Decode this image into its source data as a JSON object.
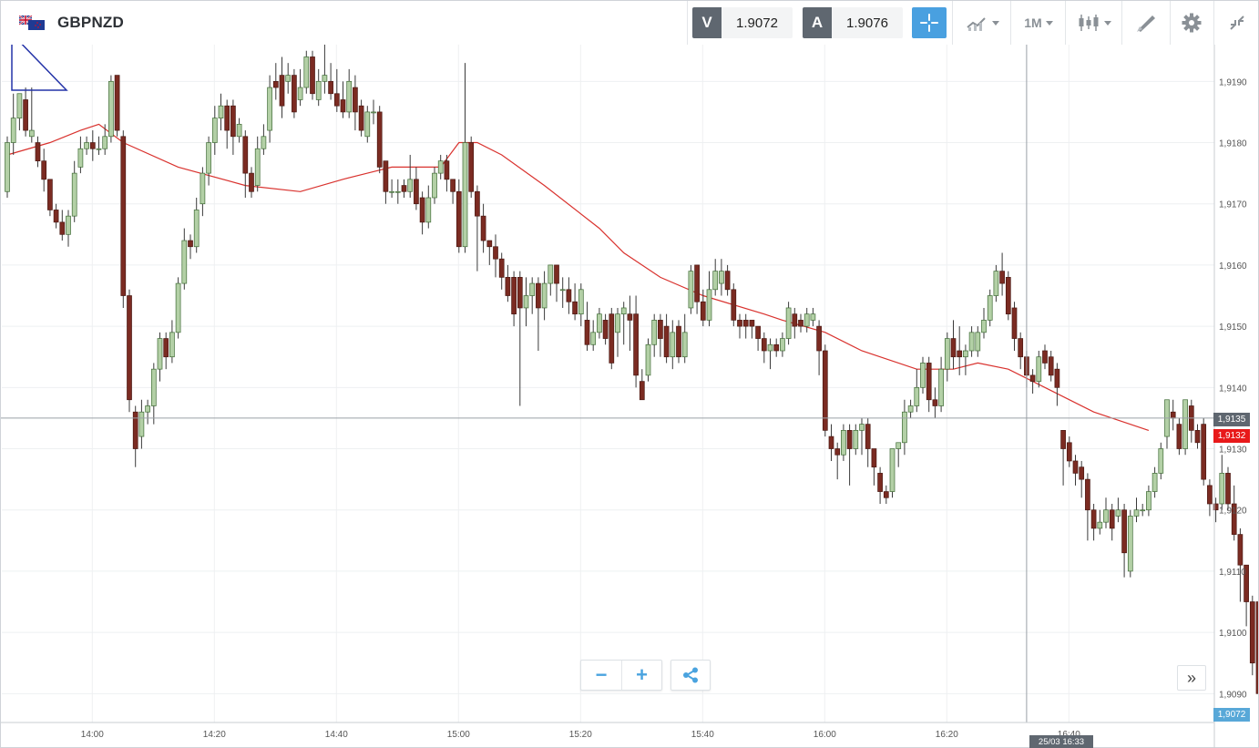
{
  "instrument": {
    "symbol": "GBPNZD"
  },
  "quotes": {
    "bid_tag": "V",
    "bid": "1.9072",
    "ask_tag": "A",
    "ask": "1.9076"
  },
  "toolbar": {
    "timeframe": "1M",
    "icons": [
      "crosshair-icon",
      "line-chart-icon",
      "candlestick-icon",
      "drawing-tool-icon",
      "gear-icon",
      "collapse-icon"
    ]
  },
  "colors": {
    "bull": "#b3d0a6",
    "bear": "#7b2b22",
    "ma": "#d9322e",
    "accent": "#49a0e0",
    "current_price_tag": "#e8191a",
    "bid_tag_bg": "#58a8d8"
  },
  "axis_labels": {
    "y": [
      "1,9190",
      "1,9180",
      "1,9170",
      "1,9160",
      "1,9150",
      "1,9140",
      "1,9130",
      "1,9120",
      "1,9110",
      "1,9100",
      "1,9090"
    ],
    "x": [
      "14:00",
      "14:20",
      "14:40",
      "15:00",
      "15:20",
      "15:40",
      "16:00",
      "16:20",
      "16:40"
    ]
  },
  "price_tags": {
    "crosshair_price": "1,9135",
    "current_price": "1,9132",
    "bid_price": "1,9072",
    "crosshair_time": "25/03 16:33"
  },
  "controls": {
    "zoom_out": "−",
    "zoom_in": "+",
    "scroll_forward": "»"
  },
  "chart_data": {
    "type": "candlestick",
    "timeframe": "1M",
    "ylim": [
      1.9088,
      1.9196
    ],
    "y_ticks": [
      1.919,
      1.918,
      1.917,
      1.916,
      1.915,
      1.914,
      1.913,
      1.912,
      1.911,
      1.91,
      1.909
    ],
    "x_ticks": [
      "14:00",
      "14:20",
      "14:40",
      "15:00",
      "15:20",
      "15:40",
      "16:00",
      "16:20",
      "16:40"
    ],
    "x_start": "13:46",
    "crosshair": {
      "time": "25/03 16:33",
      "price": 1.9135
    },
    "current_price": 1.9132,
    "ohlc": [
      [
        1.9172,
        1.918,
        1.9181,
        1.9171
      ],
      [
        1.918,
        1.9184,
        1.9188,
        1.9178
      ],
      [
        1.9184,
        1.9188,
        1.9188,
        1.9182
      ],
      [
        1.9187,
        1.9182,
        1.9189,
        1.9181
      ],
      [
        1.9181,
        1.9182,
        1.9189,
        1.918
      ],
      [
        1.918,
        1.9177,
        1.9181,
        1.9176
      ],
      [
        1.9177,
        1.9174,
        1.9179,
        1.9172
      ],
      [
        1.9174,
        1.9169,
        1.9174,
        1.9168
      ],
      [
        1.9169,
        1.9167,
        1.917,
        1.9166
      ],
      [
        1.9167,
        1.9165,
        1.9169,
        1.9164
      ],
      [
        1.9165,
        1.9168,
        1.9169,
        1.9163
      ],
      [
        1.9168,
        1.9175,
        1.9177,
        1.9167
      ],
      [
        1.9176,
        1.9179,
        1.9181,
        1.9175
      ],
      [
        1.9179,
        1.918,
        1.9181,
        1.9178
      ],
      [
        1.918,
        1.9179,
        1.9182,
        1.9177
      ],
      [
        1.9179,
        1.9179,
        1.9181,
        1.9178
      ],
      [
        1.9179,
        1.9181,
        1.9183,
        1.9178
      ],
      [
        1.9181,
        1.919,
        1.9191,
        1.918
      ],
      [
        1.9191,
        1.9182,
        1.9191,
        1.9181
      ],
      [
        1.9181,
        1.9155,
        1.9182,
        1.9153
      ],
      [
        1.9155,
        1.9138,
        1.9156,
        1.9136
      ],
      [
        1.9136,
        1.913,
        1.9137,
        1.9127
      ],
      [
        1.9132,
        1.9136,
        1.9138,
        1.913
      ],
      [
        1.9136,
        1.9137,
        1.9138,
        1.9134
      ],
      [
        1.9137,
        1.9143,
        1.9144,
        1.9134
      ],
      [
        1.9143,
        1.9148,
        1.9149,
        1.9141
      ],
      [
        1.9148,
        1.9145,
        1.9149,
        1.9143
      ],
      [
        1.9145,
        1.9149,
        1.9151,
        1.9144
      ],
      [
        1.9149,
        1.9157,
        1.9158,
        1.9148
      ],
      [
        1.9157,
        1.9164,
        1.9166,
        1.9156
      ],
      [
        1.9164,
        1.9163,
        1.9165,
        1.9161
      ],
      [
        1.9163,
        1.9169,
        1.9171,
        1.9162
      ],
      [
        1.917,
        1.9175,
        1.9176,
        1.9168
      ],
      [
        1.9175,
        1.918,
        1.9181,
        1.9173
      ],
      [
        1.918,
        1.9184,
        1.9186,
        1.9178
      ],
      [
        1.9184,
        1.9186,
        1.9188,
        1.9182
      ],
      [
        1.9186,
        1.9182,
        1.9187,
        1.9179
      ],
      [
        1.9186,
        1.9181,
        1.9187,
        1.9178
      ],
      [
        1.9181,
        1.9183,
        1.9184,
        1.918
      ],
      [
        1.9181,
        1.9175,
        1.9182,
        1.9171
      ],
      [
        1.9175,
        1.9172,
        1.9176,
        1.9171
      ],
      [
        1.9173,
        1.9179,
        1.9181,
        1.9172
      ],
      [
        1.9179,
        1.9181,
        1.9183,
        1.9178
      ],
      [
        1.9182,
        1.9189,
        1.9191,
        1.918
      ],
      [
        1.919,
        1.9189,
        1.9193,
        1.9187
      ],
      [
        1.9191,
        1.9186,
        1.9194,
        1.9184
      ],
      [
        1.919,
        1.9191,
        1.9193,
        1.9188
      ],
      [
        1.9191,
        1.9185,
        1.9192,
        1.9184
      ],
      [
        1.9187,
        1.9189,
        1.9192,
        1.9186
      ],
      [
        1.9189,
        1.9194,
        1.9195,
        1.9188
      ],
      [
        1.9194,
        1.9188,
        1.9195,
        1.9187
      ],
      [
        1.9187,
        1.919,
        1.9192,
        1.9186
      ],
      [
        1.919,
        1.9191,
        1.9196,
        1.9188
      ],
      [
        1.919,
        1.9188,
        1.9193,
        1.9187
      ],
      [
        1.9188,
        1.9186,
        1.9192,
        1.9185
      ],
      [
        1.9187,
        1.9185,
        1.919,
        1.9184
      ],
      [
        1.9185,
        1.919,
        1.9192,
        1.9184
      ],
      [
        1.9189,
        1.9185,
        1.9191,
        1.9182
      ],
      [
        1.9186,
        1.9182,
        1.9187,
        1.9181
      ],
      [
        1.9181,
        1.9185,
        1.9186,
        1.918
      ],
      [
        1.9185,
        1.9185,
        1.9187,
        1.9183
      ],
      [
        1.9185,
        1.9176,
        1.9186,
        1.9175
      ],
      [
        1.9177,
        1.9172,
        1.9177,
        1.917
      ],
      [
        1.9172,
        1.9172,
        1.9174,
        1.9171
      ],
      [
        1.9172,
        1.9172,
        1.9174,
        1.917
      ],
      [
        1.9173,
        1.9172,
        1.9174,
        1.9171
      ],
      [
        1.9172,
        1.9174,
        1.9178,
        1.9171
      ],
      [
        1.9174,
        1.917,
        1.9176,
        1.9169
      ],
      [
        1.9171,
        1.9167,
        1.9172,
        1.9165
      ],
      [
        1.9167,
        1.9171,
        1.9173,
        1.9166
      ],
      [
        1.9171,
        1.9175,
        1.9176,
        1.917
      ],
      [
        1.9175,
        1.9177,
        1.9178,
        1.9174
      ],
      [
        1.9177,
        1.9174,
        1.9178,
        1.9172
      ],
      [
        1.9174,
        1.9172,
        1.9174,
        1.917
      ],
      [
        1.9172,
        1.9163,
        1.9174,
        1.9162
      ],
      [
        1.9163,
        1.918,
        1.9193,
        1.9162
      ],
      [
        1.918,
        1.9172,
        1.9181,
        1.9171
      ],
      [
        1.9172,
        1.9168,
        1.9173,
        1.9159
      ],
      [
        1.9168,
        1.9164,
        1.917,
        1.9162
      ],
      [
        1.9164,
        1.9163,
        1.9164,
        1.916
      ],
      [
        1.9163,
        1.9161,
        1.9165,
        1.9158
      ],
      [
        1.9161,
        1.9158,
        1.9162,
        1.9156
      ],
      [
        1.9158,
        1.9155,
        1.916,
        1.9154
      ],
      [
        1.9158,
        1.9152,
        1.9159,
        1.915
      ],
      [
        1.9158,
        1.9153,
        1.9159,
        1.9137
      ],
      [
        1.9153,
        1.9155,
        1.9158,
        1.915
      ],
      [
        1.9155,
        1.9157,
        1.9158,
        1.9152
      ],
      [
        1.9157,
        1.9153,
        1.9158,
        1.9146
      ],
      [
        1.9153,
        1.9157,
        1.9159,
        1.9151
      ],
      [
        1.9157,
        1.916,
        1.916,
        1.9155
      ],
      [
        1.916,
        1.9157,
        1.916,
        1.9154
      ],
      [
        1.9156,
        1.9156,
        1.9158,
        1.9153
      ],
      [
        1.9156,
        1.9154,
        1.9158,
        1.9152
      ],
      [
        1.9154,
        1.9152,
        1.9157,
        1.9151
      ],
      [
        1.9152,
        1.9156,
        1.9157,
        1.915
      ],
      [
        1.9151,
        1.9147,
        1.9154,
        1.9146
      ],
      [
        1.9147,
        1.9149,
        1.9151,
        1.9146
      ],
      [
        1.9149,
        1.9152,
        1.9153,
        1.9148
      ],
      [
        1.9151,
        1.9148,
        1.9152,
        1.9147
      ],
      [
        1.9152,
        1.9144,
        1.9153,
        1.9143
      ],
      [
        1.9149,
        1.9152,
        1.9153,
        1.9145
      ],
      [
        1.9152,
        1.9153,
        1.9154,
        1.9147
      ],
      [
        1.9152,
        1.9151,
        1.9155,
        1.9146
      ],
      [
        1.9152,
        1.9142,
        1.9155,
        1.914
      ],
      [
        1.9141,
        1.9138,
        1.9143,
        1.9138
      ],
      [
        1.9142,
        1.9147,
        1.9148,
        1.9141
      ],
      [
        1.9147,
        1.9151,
        1.9152,
        1.9145
      ],
      [
        1.9151,
        1.9148,
        1.9152,
        1.9145
      ],
      [
        1.915,
        1.9145,
        1.9152,
        1.9144
      ],
      [
        1.9145,
        1.9149,
        1.9151,
        1.9143
      ],
      [
        1.915,
        1.9145,
        1.9151,
        1.9144
      ],
      [
        1.9145,
        1.9149,
        1.9152,
        1.9144
      ],
      [
        1.9153,
        1.9159,
        1.916,
        1.9152
      ],
      [
        1.916,
        1.9154,
        1.916,
        1.9152
      ],
      [
        1.9154,
        1.9151,
        1.9156,
        1.915
      ],
      [
        1.9151,
        1.9156,
        1.9159,
        1.915
      ],
      [
        1.9156,
        1.9159,
        1.9161,
        1.9155
      ],
      [
        1.9157,
        1.9159,
        1.9161,
        1.9155
      ],
      [
        1.9159,
        1.9156,
        1.916,
        1.9155
      ],
      [
        1.9156,
        1.9151,
        1.9157,
        1.915
      ],
      [
        1.9151,
        1.915,
        1.9152,
        1.9148
      ],
      [
        1.9151,
        1.915,
        1.9152,
        1.9148
      ],
      [
        1.9151,
        1.915,
        1.9151,
        1.9148
      ],
      [
        1.915,
        1.9148,
        1.915,
        1.9146
      ],
      [
        1.9148,
        1.9146,
        1.9149,
        1.9144
      ],
      [
        1.9146,
        1.9147,
        1.9148,
        1.9143
      ],
      [
        1.9147,
        1.9146,
        1.9148,
        1.9145
      ],
      [
        1.9146,
        1.9148,
        1.9149,
        1.9145
      ],
      [
        1.9148,
        1.9153,
        1.9154,
        1.9147
      ],
      [
        1.9152,
        1.915,
        1.9153,
        1.9148
      ],
      [
        1.9151,
        1.915,
        1.9152,
        1.9149
      ],
      [
        1.915,
        1.9152,
        1.9153,
        1.9149
      ],
      [
        1.9151,
        1.9152,
        1.9153,
        1.915
      ],
      [
        1.915,
        1.9146,
        1.9151,
        1.9142
      ],
      [
        1.9146,
        1.9133,
        1.9147,
        1.9132
      ],
      [
        1.9132,
        1.913,
        1.9134,
        1.9128
      ],
      [
        1.913,
        1.9129,
        1.9131,
        1.9125
      ],
      [
        1.9129,
        1.9133,
        1.9134,
        1.9128
      ],
      [
        1.9133,
        1.913,
        1.9134,
        1.9124
      ],
      [
        1.913,
        1.9133,
        1.9134,
        1.9129
      ],
      [
        1.9133,
        1.9134,
        1.9135,
        1.9129
      ],
      [
        1.9134,
        1.913,
        1.9135,
        1.9127
      ],
      [
        1.913,
        1.9127,
        1.913,
        1.9124
      ],
      [
        1.9126,
        1.9123,
        1.9127,
        1.9121
      ],
      [
        1.9123,
        1.9122,
        1.9124,
        1.9121
      ],
      [
        1.9123,
        1.913,
        1.913,
        1.9122
      ],
      [
        1.913,
        1.9131,
        1.9131,
        1.9127
      ],
      [
        1.9131,
        1.9136,
        1.9138,
        1.9129
      ],
      [
        1.9136,
        1.9137,
        1.9138,
        1.9135
      ],
      [
        1.9137,
        1.914,
        1.9143,
        1.9136
      ],
      [
        1.914,
        1.9144,
        1.9145,
        1.9139
      ],
      [
        1.9144,
        1.9138,
        1.9145,
        1.9136
      ],
      [
        1.9138,
        1.9137,
        1.914,
        1.9135
      ],
      [
        1.9137,
        1.9143,
        1.9145,
        1.9136
      ],
      [
        1.9143,
        1.9148,
        1.9149,
        1.9141
      ],
      [
        1.9148,
        1.9145,
        1.9151,
        1.9143
      ],
      [
        1.9146,
        1.9145,
        1.915,
        1.9142
      ],
      [
        1.9145,
        1.9146,
        1.9147,
        1.9142
      ],
      [
        1.9146,
        1.9149,
        1.915,
        1.9145
      ],
      [
        1.9146,
        1.9149,
        1.915,
        1.9145
      ],
      [
        1.9149,
        1.9151,
        1.9153,
        1.9148
      ],
      [
        1.9151,
        1.9155,
        1.9156,
        1.915
      ],
      [
        1.9155,
        1.9159,
        1.916,
        1.9154
      ],
      [
        1.9159,
        1.9157,
        1.9162,
        1.9155
      ],
      [
        1.9158,
        1.9152,
        1.9159,
        1.9151
      ],
      [
        1.9153,
        1.9148,
        1.9154,
        1.9146
      ],
      [
        1.9148,
        1.9145,
        1.9149,
        1.9143
      ],
      [
        1.9145,
        1.9142,
        1.9146,
        1.914
      ],
      [
        1.9142,
        1.9141,
        1.9143,
        1.9139
      ],
      [
        1.9141,
        1.9145,
        1.9146,
        1.914
      ],
      [
        1.9146,
        1.9144,
        1.9147,
        1.9143
      ],
      [
        1.9145,
        1.9142,
        1.9146,
        1.9141
      ],
      [
        1.9143,
        1.914,
        1.9144,
        1.9137
      ],
      [
        1.9133,
        1.913,
        1.9133,
        1.9124
      ],
      [
        1.9131,
        1.9128,
        1.9132,
        1.9127
      ],
      [
        1.9128,
        1.9126,
        1.9129,
        1.9124
      ],
      [
        1.9127,
        1.9125,
        1.9128,
        1.9122
      ],
      [
        1.9125,
        1.912,
        1.9126,
        1.9115
      ],
      [
        1.912,
        1.9117,
        1.9121,
        1.9115
      ],
      [
        1.9117,
        1.9118,
        1.912,
        1.9116
      ],
      [
        1.9118,
        1.912,
        1.9122,
        1.9117
      ],
      [
        1.912,
        1.9117,
        1.9121,
        1.9115
      ],
      [
        1.9119,
        1.912,
        1.9122,
        1.9118
      ],
      [
        1.912,
        1.9113,
        1.9121,
        1.9109
      ],
      [
        1.911,
        1.9119,
        1.912,
        1.9109
      ],
      [
        1.9119,
        1.912,
        1.9122,
        1.9118
      ],
      [
        1.912,
        1.912,
        1.9121,
        1.9119
      ],
      [
        1.912,
        1.9123,
        1.9124,
        1.9119
      ],
      [
        1.9123,
        1.9126,
        1.9127,
        1.9122
      ],
      [
        1.9126,
        1.913,
        1.9131,
        1.9125
      ],
      [
        1.9132,
        1.9138,
        1.9138,
        1.913
      ],
      [
        1.9136,
        1.9135,
        1.9138,
        1.9133
      ],
      [
        1.9134,
        1.913,
        1.9135,
        1.9129
      ],
      [
        1.913,
        1.9138,
        1.9138,
        1.9129
      ],
      [
        1.9137,
        1.9133,
        1.9138,
        1.9131
      ],
      [
        1.9133,
        1.9131,
        1.9134,
        1.913
      ],
      [
        1.9134,
        1.9125,
        1.9135,
        1.9124
      ],
      [
        1.9124,
        1.9121,
        1.9125,
        1.9119
      ],
      [
        1.9121,
        1.912,
        1.9122,
        1.9118
      ],
      [
        1.9121,
        1.9126,
        1.9129,
        1.912
      ],
      [
        1.9126,
        1.9121,
        1.9127,
        1.912
      ],
      [
        1.9121,
        1.9116,
        1.9124,
        1.9115
      ],
      [
        1.9116,
        1.9111,
        1.9117,
        1.9105
      ],
      [
        1.9111,
        1.9105,
        1.9111,
        1.9101
      ],
      [
        1.9105,
        1.9095,
        1.9106,
        1.9093
      ],
      [
        1.9105,
        1.909,
        1.9106,
        1.9088
      ]
    ],
    "moving_average": {
      "x": [
        "13:46",
        "13:53",
        "13:58",
        "14:01",
        "14:05",
        "14:14",
        "14:25",
        "14:34",
        "14:41",
        "14:45",
        "14:49",
        "14:52",
        "14:57",
        "15:00",
        "15:03",
        "15:07",
        "15:14",
        "15:23",
        "15:27",
        "15:33",
        "15:40",
        "15:50",
        "15:53",
        "16:00",
        "16:06",
        "16:15",
        "16:21",
        "16:25",
        "16:30",
        "16:36",
        "16:44",
        "16:53"
      ],
      "y": [
        1.9178,
        1.918,
        1.9182,
        1.9183,
        1.918,
        1.9176,
        1.9173,
        1.9172,
        1.9174,
        1.9175,
        1.9176,
        1.9176,
        1.9176,
        1.918,
        1.918,
        1.9178,
        1.9173,
        1.9166,
        1.9162,
        1.9158,
        1.9155,
        1.9152,
        1.9151,
        1.9149,
        1.9146,
        1.9143,
        1.9143,
        1.9144,
        1.9143,
        1.914,
        1.9136,
        1.9133
      ]
    }
  }
}
